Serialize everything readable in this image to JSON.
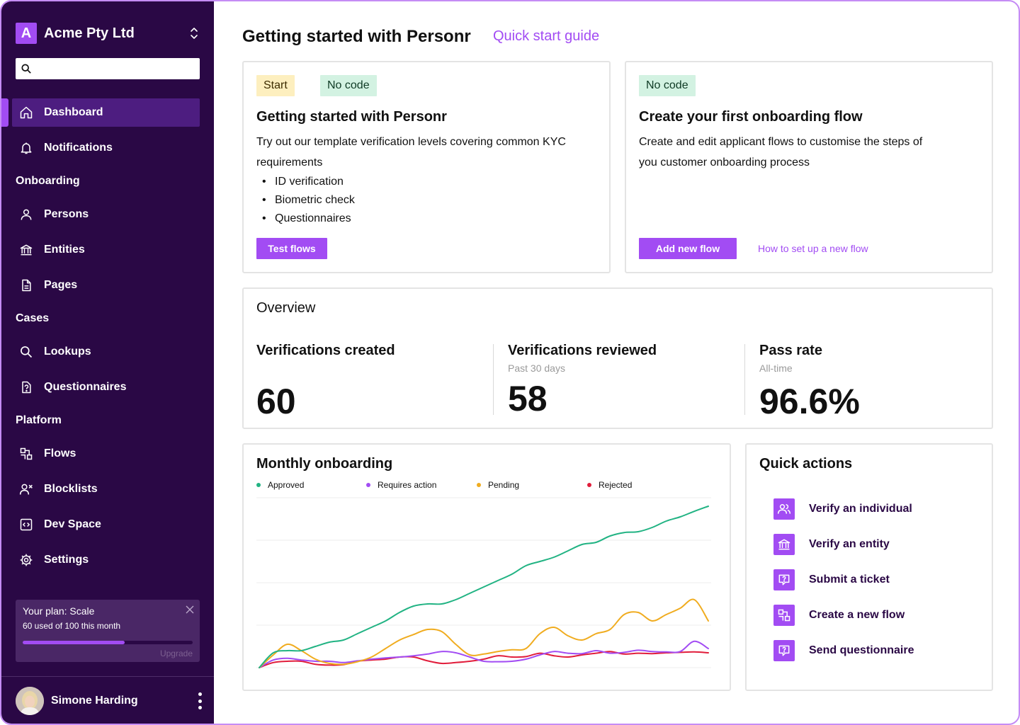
{
  "sidebar": {
    "org_initial": "A",
    "org_name": "Acme Pty Ltd",
    "search_placeholder": "",
    "items": {
      "dashboard": "Dashboard",
      "notifications": "Notifications",
      "persons": "Persons",
      "entities": "Entities",
      "pages": "Pages",
      "lookups": "Lookups",
      "questionnaires": "Questionnaires",
      "flows": "Flows",
      "blocklists": "Blocklists",
      "dev_space": "Dev Space",
      "settings": "Settings"
    },
    "sections": {
      "onboarding": "Onboarding",
      "cases": "Cases",
      "platform": "Platform"
    },
    "plan": {
      "title": "Your plan: Scale",
      "usage": "60 used of 100 this month",
      "used": 60,
      "limit": 100,
      "upgrade_label": "Upgrade"
    },
    "user": {
      "name": "Simone Harding"
    }
  },
  "header": {
    "title": "Getting started with Personr",
    "guide_link": "Quick start guide"
  },
  "card_getting_started": {
    "tag_start": "Start",
    "tag_nocode": "No code",
    "title": "Getting started with Personr",
    "description": "Try out our template verification levels covering common KYC requirements",
    "bullets": [
      "ID verification",
      "Biometric check",
      "Questionnaires"
    ],
    "button": "Test flows"
  },
  "card_onboarding_flow": {
    "tag_nocode": "No code",
    "title": "Create your first onboarding flow",
    "description": "Create and edit applicant flows to customise the steps of you customer onboarding process",
    "button": "Add new flow",
    "link": "How to set up a new flow"
  },
  "overview": {
    "title": "Overview",
    "created": {
      "label": "Verifications created",
      "value": "60"
    },
    "reviewed": {
      "label": "Verifications reviewed",
      "sub": "Past 30 days",
      "value": "58"
    },
    "pass_rate": {
      "label": "Pass rate",
      "sub": "All-time",
      "value": "96.6%"
    }
  },
  "monthly": {
    "title": "Monthly onboarding"
  },
  "chart_data": {
    "type": "line",
    "title": "Monthly onboarding",
    "xlabel": "",
    "ylabel": "",
    "x": [
      0,
      1,
      2,
      3,
      4,
      5,
      6,
      7,
      8,
      9,
      10,
      11,
      12,
      13,
      14,
      15,
      16,
      17,
      18,
      19,
      20,
      21,
      22,
      23,
      24,
      25,
      26,
      27,
      28,
      29,
      30,
      31,
      32
    ],
    "ylim": [
      0,
      40
    ],
    "grid": true,
    "legend": "top",
    "series": [
      {
        "name": "Approved",
        "color": "#21b383",
        "values": [
          0,
          3.5,
          4,
          4,
          5,
          6,
          6.5,
          8,
          9.5,
          11,
          13,
          14.5,
          15,
          15,
          16,
          17.5,
          19,
          20.5,
          22,
          24,
          25,
          26,
          27.5,
          29,
          29.5,
          31,
          31.8,
          32,
          33,
          34.5,
          35.5,
          36.8,
          38
        ]
      },
      {
        "name": "Requires action",
        "color": "#a24cf3",
        "values": [
          0,
          1.8,
          2.2,
          1.8,
          1.5,
          1.5,
          1.2,
          1.6,
          2,
          2.3,
          2.5,
          2.8,
          3.2,
          3.8,
          3.5,
          2.5,
          1.5,
          1.4,
          1.5,
          2,
          3,
          3.8,
          3.4,
          3.3,
          4,
          3.4,
          3.6,
          4.1,
          3.8,
          3.7,
          3.8,
          6.2,
          4.5
        ]
      },
      {
        "name": "Pending",
        "color": "#f0ac1f",
        "values": [
          0,
          3,
          5.5,
          4,
          2,
          1,
          0.8,
          1.4,
          2.5,
          4.5,
          6.5,
          7.8,
          9,
          8.5,
          5.5,
          3,
          3.2,
          3.8,
          4.2,
          4.5,
          8,
          9.5,
          7.5,
          6.5,
          8,
          9,
          12.5,
          13,
          11,
          12.5,
          14,
          16,
          11
        ]
      },
      {
        "name": "Rejected",
        "color": "#e11d3b",
        "values": [
          0,
          1.2,
          1.5,
          1.5,
          0.8,
          0.6,
          0.7,
          1.5,
          1.8,
          2,
          2.5,
          2.5,
          1.6,
          1,
          1.2,
          1.5,
          2,
          2.8,
          2.5,
          2.6,
          3.4,
          2.8,
          2.5,
          3,
          3.4,
          3.8,
          3.2,
          3.4,
          3.3,
          3.5,
          3.6,
          3.7,
          3.5
        ]
      }
    ]
  },
  "quick_actions": {
    "title": "Quick actions",
    "items": {
      "verify_individual": "Verify an individual",
      "verify_entity": "Verify an entity",
      "submit_ticket": "Submit a ticket",
      "create_flow": "Create a new flow",
      "send_questionnaire": "Send questionnaire"
    }
  }
}
